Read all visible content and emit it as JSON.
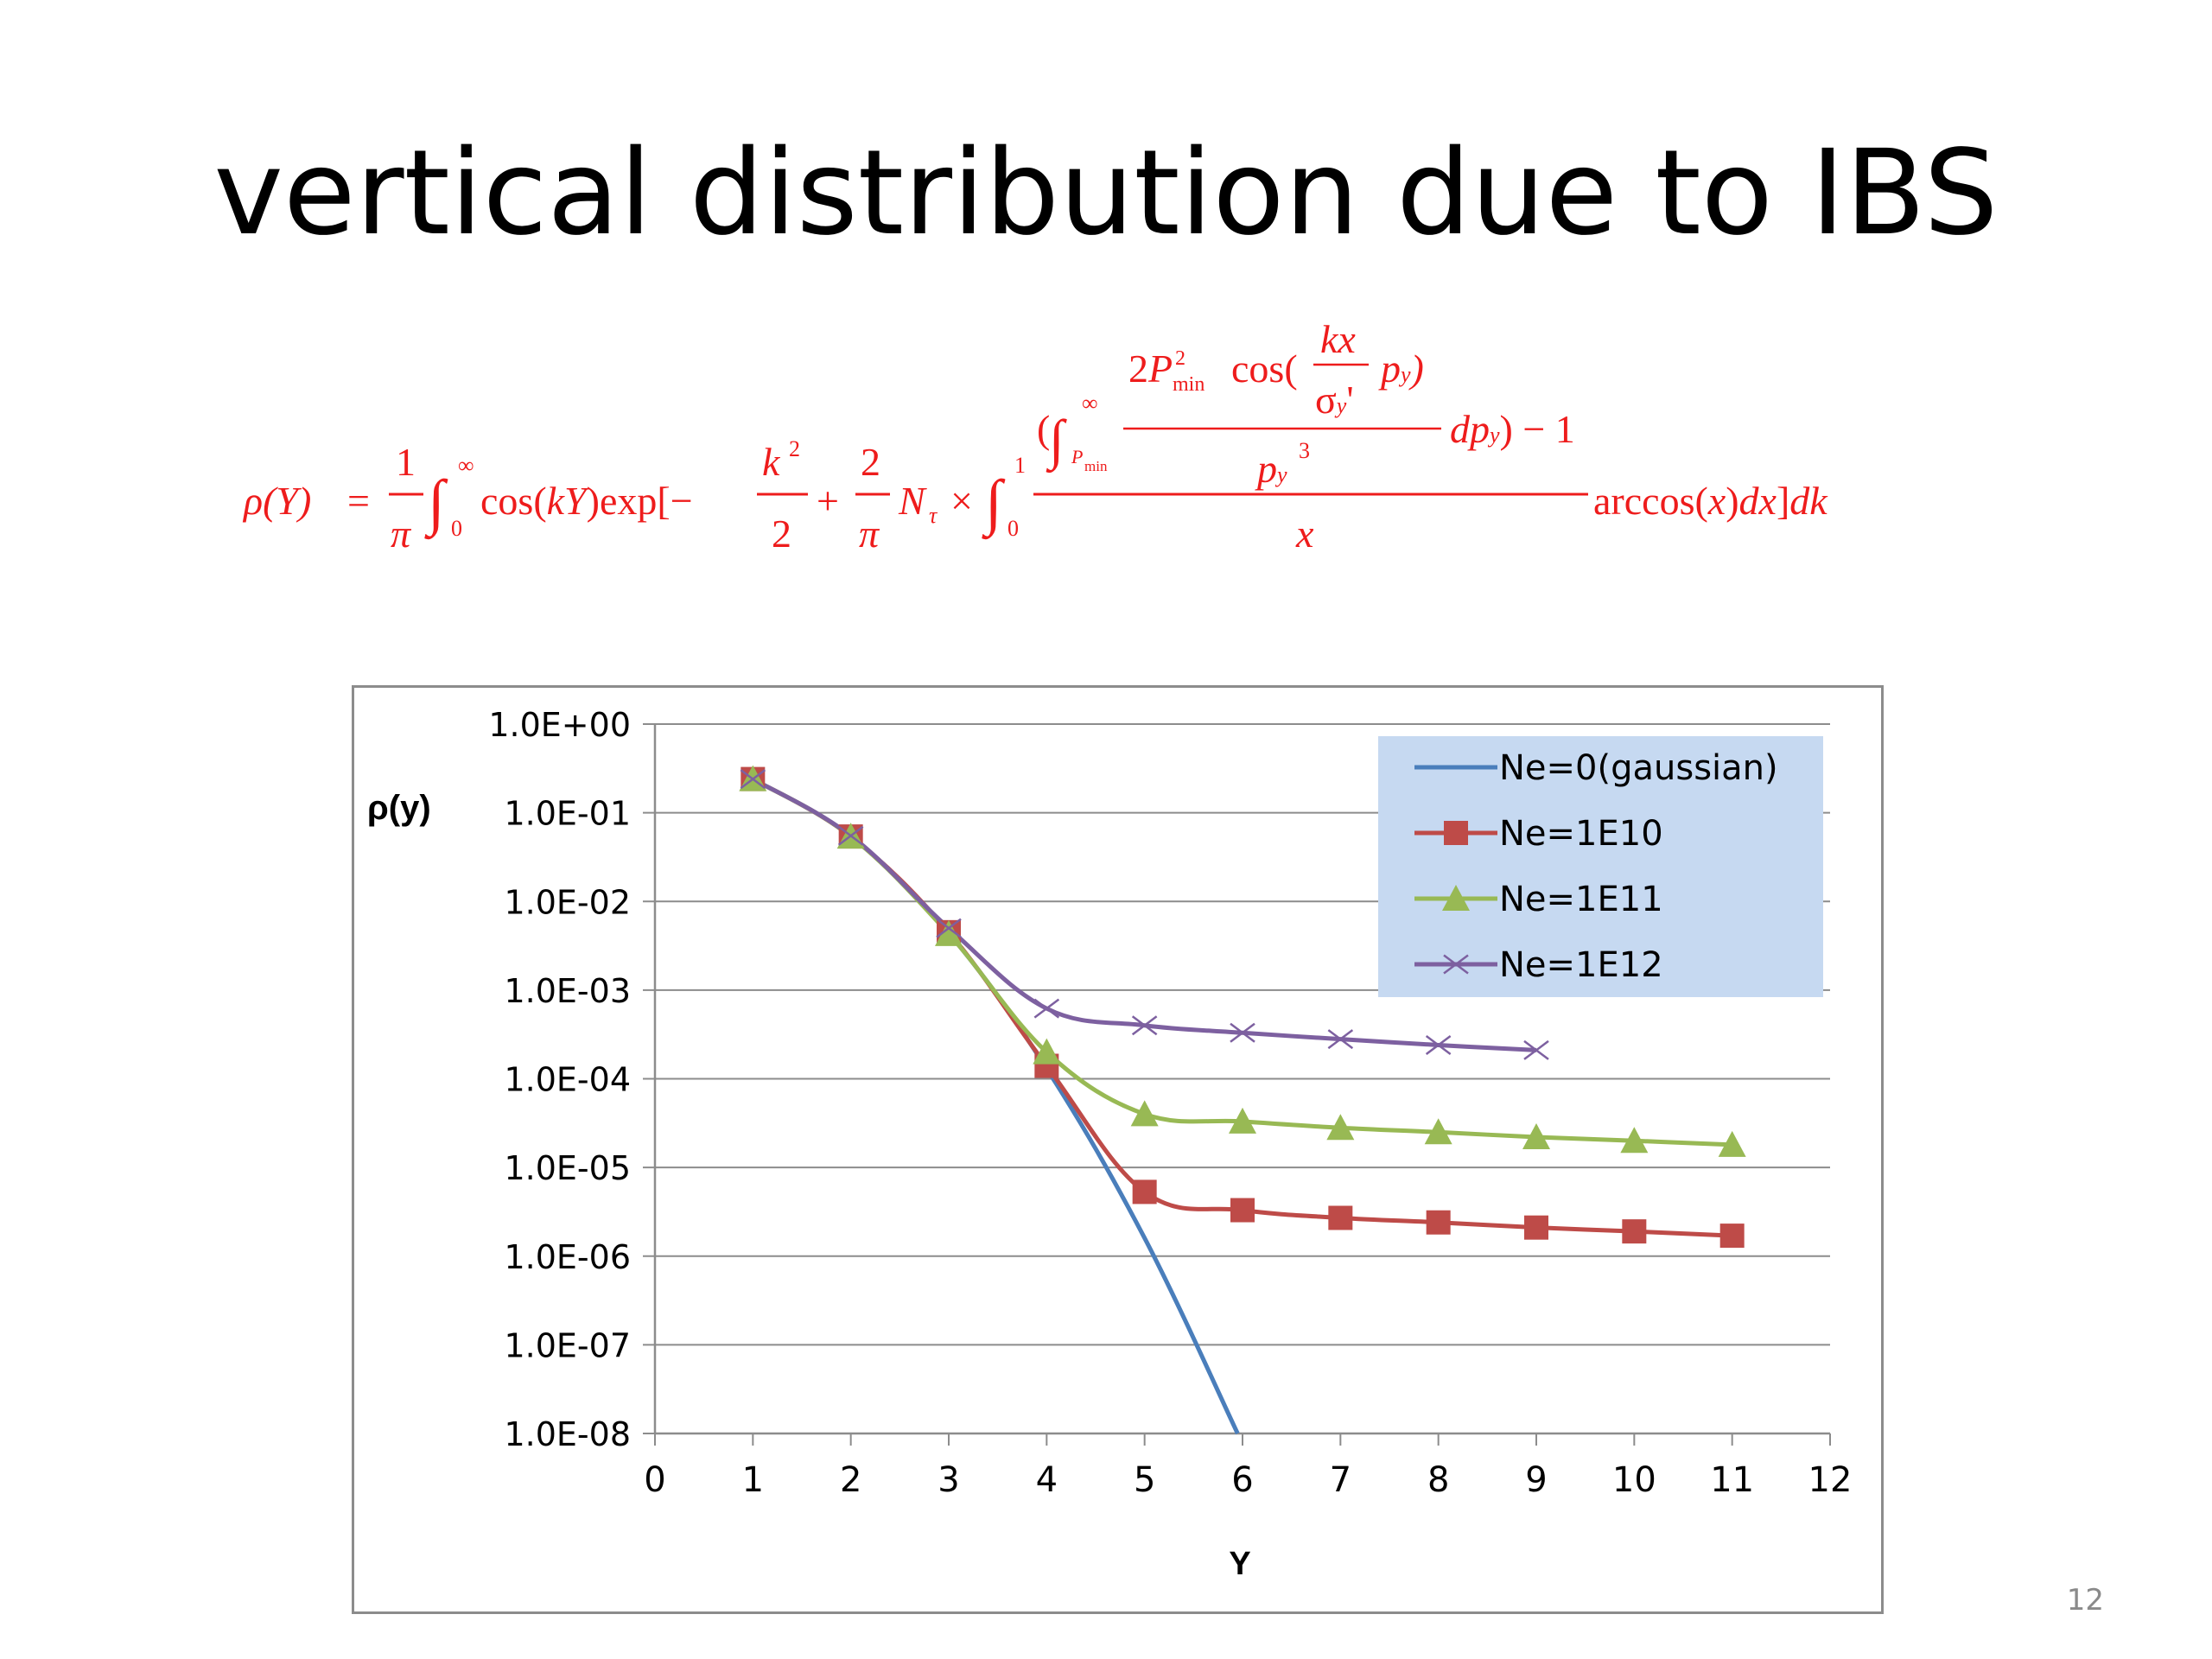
{
  "slide": {
    "title": "vertical distribution due to IBS",
    "page_number": "12"
  },
  "formula": {
    "color": "#ee1c1c"
  },
  "chart_data": {
    "type": "line",
    "title": "",
    "xlabel": "Y",
    "ylabel": "ρ(y)",
    "y_scale": "log",
    "xlim": [
      0,
      12
    ],
    "ylim": [
      1e-08,
      1
    ],
    "x_ticks": [
      "0",
      "1",
      "2",
      "3",
      "4",
      "5",
      "6",
      "7",
      "8",
      "9",
      "10",
      "11",
      "12"
    ],
    "y_ticks": [
      "1.0E+00",
      "1.0E-01",
      "1.0E-02",
      "1.0E-03",
      "1.0E-04",
      "1.0E-05",
      "1.0E-06",
      "1.0E-07",
      "1.0E-08"
    ],
    "grid": "horizontal",
    "legend_position": "top-right",
    "legend_background": "#c6d9f1",
    "series": [
      {
        "name": "Ne=0(gaussian)",
        "color": "#4a7ebb",
        "marker": "none",
        "x": [
          1,
          2,
          3,
          4,
          5,
          5.95
        ],
        "y": [
          0.24,
          0.054,
          0.0044,
          0.00013,
          1.6e-06,
          1e-08
        ]
      },
      {
        "name": "Ne=1E10",
        "color": "#be4b48",
        "marker": "square",
        "x": [
          1,
          2,
          3,
          4,
          5,
          6,
          7,
          8,
          9,
          10,
          11
        ],
        "y": [
          0.24,
          0.054,
          0.0045,
          0.00014,
          5.3e-06,
          3.3e-06,
          2.7e-06,
          2.4e-06,
          2.1e-06,
          1.9e-06,
          1.7e-06
        ]
      },
      {
        "name": "Ne=1E11",
        "color": "#98b954",
        "marker": "triangle",
        "x": [
          1,
          2,
          3,
          4,
          5,
          6,
          7,
          8,
          9,
          10,
          11
        ],
        "y": [
          0.24,
          0.054,
          0.0043,
          0.0002,
          4e-05,
          3.3e-05,
          2.8e-05,
          2.5e-05,
          2.2e-05,
          2e-05,
          1.8e-05
        ]
      },
      {
        "name": "Ne=1E12",
        "color": "#7d60a0",
        "marker": "x",
        "x": [
          1,
          2,
          3,
          4,
          5,
          6,
          7,
          8,
          9
        ],
        "y": [
          0.24,
          0.055,
          0.005,
          0.00062,
          0.0004,
          0.00033,
          0.00028,
          0.00024,
          0.00021
        ]
      }
    ]
  }
}
